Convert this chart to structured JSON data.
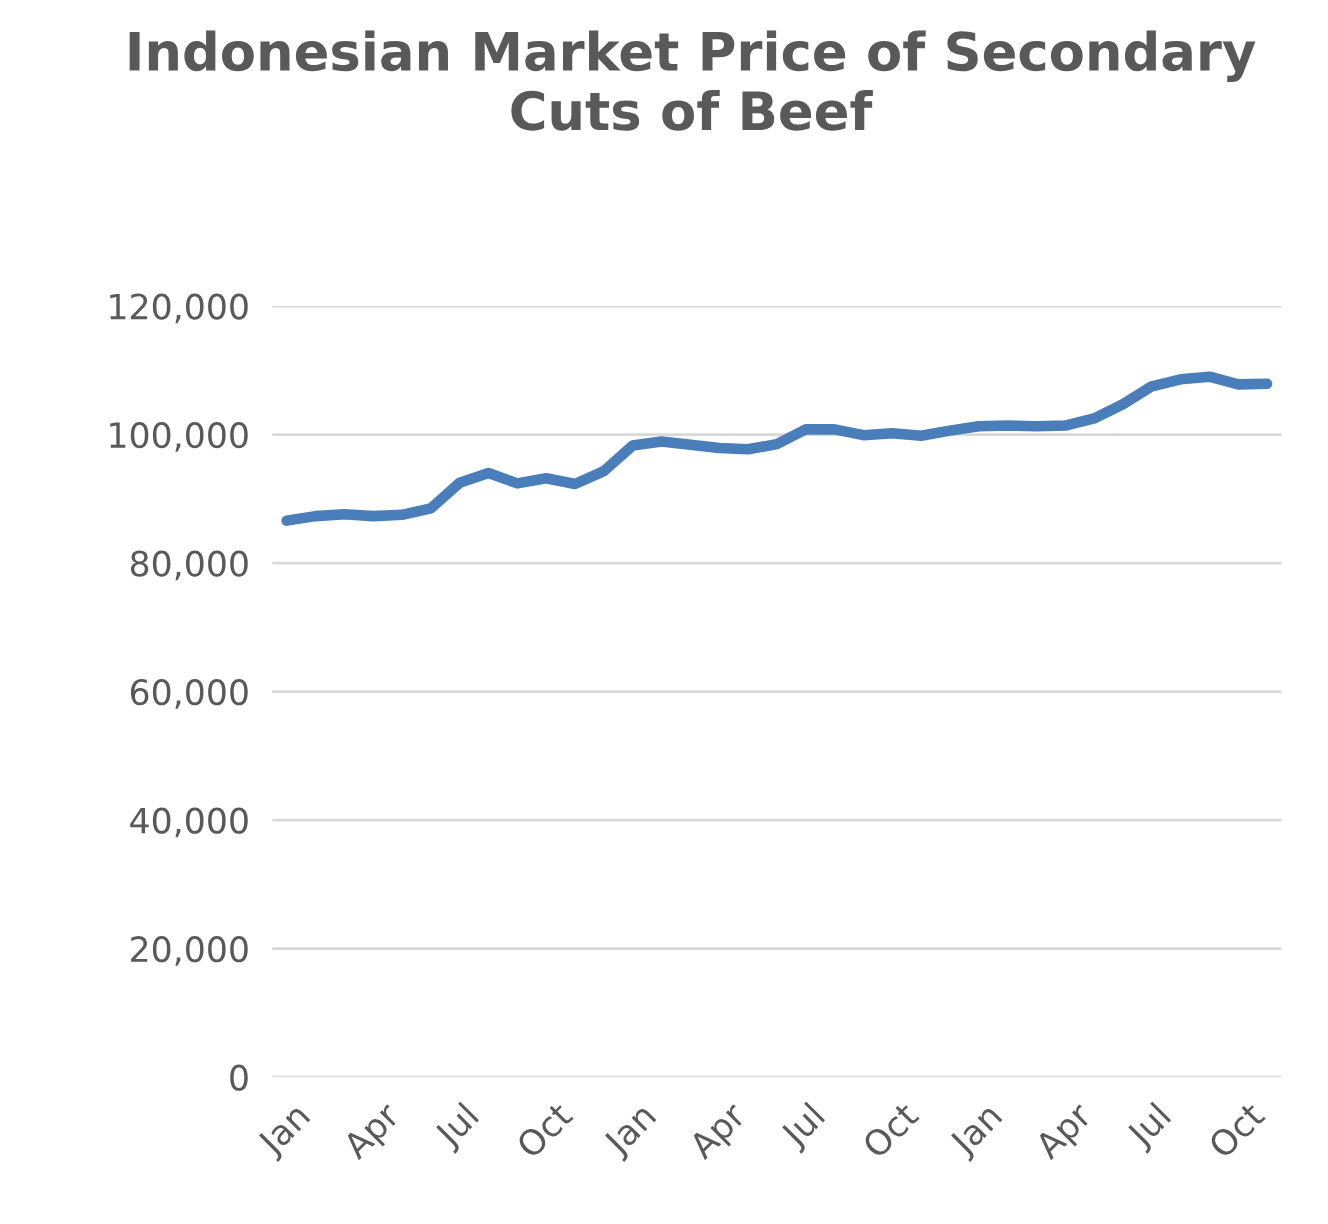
{
  "chart_data": {
    "type": "line",
    "title": "Indonesian Market Price of Secondary Cuts of Beef",
    "categories": [
      "Jan",
      null,
      null,
      "Apr",
      null,
      null,
      "Jul",
      null,
      null,
      "Oct",
      null,
      null,
      "Jan",
      null,
      null,
      "Apr",
      null,
      null,
      "Jul",
      null,
      null,
      "Oct",
      null,
      null,
      "Jan",
      null,
      null,
      "Apr",
      null,
      null,
      "Jul",
      null,
      null,
      "Oct",
      null
    ],
    "series": [
      {
        "color": "#4a7ebb",
        "values": [
          86600,
          87300,
          87600,
          87300,
          87500,
          88500,
          92500,
          94000,
          92400,
          93200,
          92300,
          94300,
          98300,
          98900,
          98400,
          97900,
          97700,
          98500,
          100800,
          100800,
          99900,
          100200,
          99800,
          100600,
          101300,
          101400,
          101300,
          101400,
          102500,
          104700,
          107500,
          108600,
          109000,
          107800,
          107900
        ]
      }
    ],
    "ylim": [
      0,
      120000
    ],
    "yticks": [
      {
        "value": 0,
        "label": "0"
      },
      {
        "value": 20000,
        "label": "20,000"
      },
      {
        "value": 40000,
        "label": "40,000"
      },
      {
        "value": 60000,
        "label": "60,000"
      },
      {
        "value": 80000,
        "label": "80,000"
      },
      {
        "value": 100000,
        "label": "100,000"
      },
      {
        "value": 120000,
        "label": "120,000"
      }
    ],
    "grid": "y",
    "legend": false,
    "marker": "none",
    "line_style": "solid"
  }
}
